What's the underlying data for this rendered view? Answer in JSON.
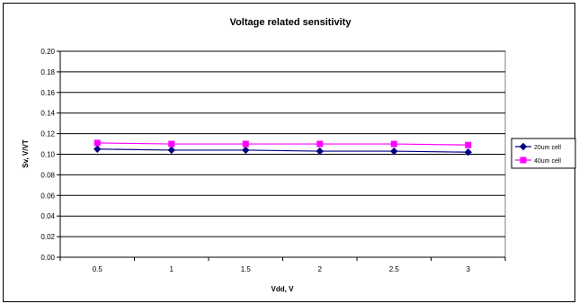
{
  "chart_data": {
    "type": "line",
    "title": "Voltage related sensitivity",
    "xlabel": "Vdd, V",
    "ylabel": "Sv, V/VT",
    "categories": [
      "0.5",
      "1",
      "1.5",
      "2",
      "2.5",
      "3"
    ],
    "y_ticks": [
      "0.00",
      "0.02",
      "0.04",
      "0.06",
      "0.08",
      "0.10",
      "0.12",
      "0.14",
      "0.16",
      "0.18",
      "0.20"
    ],
    "ylim": [
      0,
      0.2
    ],
    "grid": "horizontal",
    "legend_position": "right",
    "series": [
      {
        "name": "20um cell",
        "color": "#000080",
        "marker": "diamond",
        "values": [
          0.105,
          0.104,
          0.104,
          0.103,
          0.103,
          0.102
        ]
      },
      {
        "name": "40um cell",
        "color": "#ff00ff",
        "marker": "square",
        "values": [
          0.111,
          0.11,
          0.11,
          0.11,
          0.11,
          0.109
        ]
      }
    ]
  }
}
